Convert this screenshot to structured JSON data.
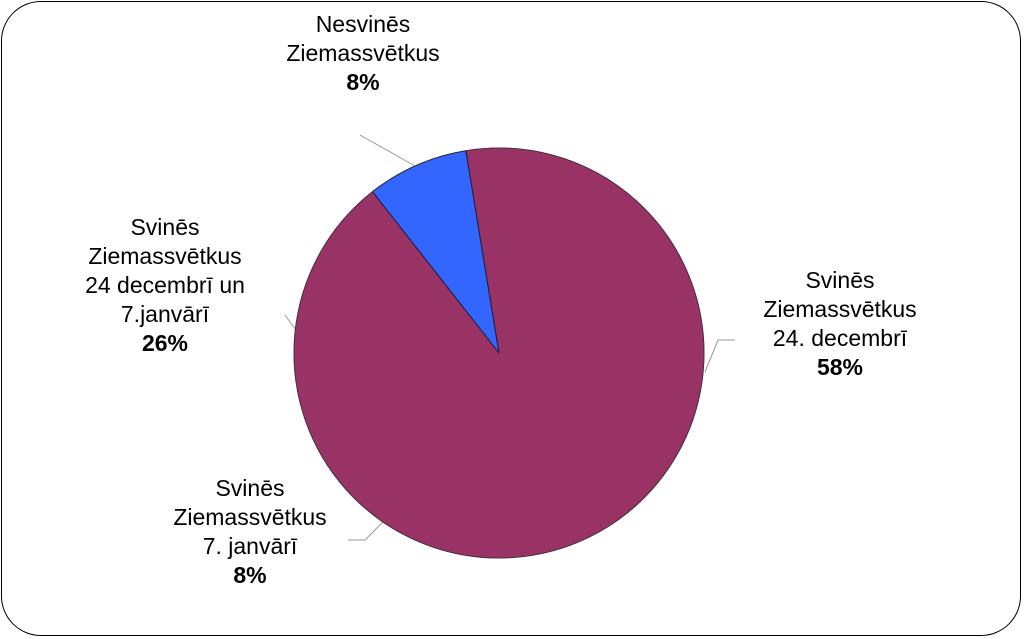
{
  "chart_data": {
    "type": "pie",
    "title": "",
    "start_angle_deg": -9.3,
    "slices": [
      {
        "label": "Svinēs Ziemassvētkus 24. decembrī",
        "lines": [
          "Svinēs",
          "Ziemassvētkus",
          "24. decembrī"
        ],
        "value": 58,
        "pct": "58%",
        "color": "#993366"
      },
      {
        "label": "Svinēs Ziemassvētkus 7. janvārī",
        "lines": [
          "Svinēs",
          "Ziemassvētkus",
          "7. janvārī"
        ],
        "value": 8,
        "pct": "8%",
        "color": "#993366"
      },
      {
        "label": "Svinēs Ziemassvētkus 24 decembrī un 7.janvārī",
        "lines": [
          "Svinēs",
          "Ziemassvētkus",
          "24 decembrī un",
          "7.janvārī"
        ],
        "value": 26,
        "pct": "26%",
        "color": "#993366"
      },
      {
        "label": "Nesvinēs Ziemassvētkus",
        "lines": [
          "Nesvinēs",
          "Ziemassvētkus"
        ],
        "value": 8,
        "pct": "8%",
        "color": "#3366FF"
      }
    ]
  }
}
